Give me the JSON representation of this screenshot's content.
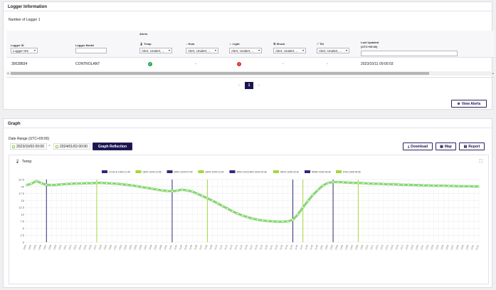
{
  "logger_info": {
    "title": "Logger Information",
    "count_label": "Number of Logger 1",
    "alerts_group_label": "Alerts",
    "columns": {
      "logger_id": "Logger ID",
      "logger_model": "Logger Model",
      "temp": "Temp",
      "hum": "Hum",
      "light": "Light",
      "shock": "Shock",
      "tilt": "Tilt",
      "last_updated": "Last Updated",
      "last_updated_tz": "(UTC+09:00)"
    },
    "filters": {
      "logger_id": "Logger IDs",
      "alert": "Alert, Unalert, ..."
    },
    "row": {
      "logger_id": "30028834",
      "logger_model": "CONTROLANT",
      "hum": "-",
      "shock": "-",
      "tilt": "-",
      "last_updated": "2023/10/11 09:00:03",
      "temp_status_color": "#22a84a",
      "light_status_color": "#d9342b"
    },
    "pagination": {
      "prev": "‹",
      "current": "1",
      "next": "›"
    },
    "view_alerts_label": "View Alerts"
  },
  "graph": {
    "title": "Graph",
    "date_range_label": "Date Range (UTC+09:00)",
    "start_date": "2023/10/03 00:00",
    "end_date": "2024/01/03 00:00",
    "separator": "~",
    "reflect_label": "Graph Reflection",
    "download_label": "Download",
    "map_label": "Map",
    "report_label": "Report",
    "chart_title": "Temp",
    "accent_color": "#1a1550",
    "line_color": "#8fdc7a"
  },
  "chart_data": {
    "type": "line",
    "title": "Temp",
    "ylim": [
      0,
      22.5
    ],
    "yticks": [
      "0",
      "2.5",
      "5",
      "7.5",
      "10",
      "12.5",
      "15",
      "17.5",
      "20",
      "22.5"
    ],
    "grid": true,
    "x": [
      "10/03",
      "10/04",
      "10/05",
      "10/06",
      "10/07",
      "10/08",
      "10/09",
      "10/10",
      "10/11",
      "10/12",
      "10/13",
      "10/14",
      "10/15",
      "10/16",
      "10/17",
      "10/18",
      "10/19",
      "10/20",
      "10/21",
      "10/22",
      "10/23",
      "10/24",
      "10/25",
      "10/26",
      "10/27",
      "10/28",
      "10/29",
      "10/30",
      "10/31",
      "11/01",
      "11/02",
      "11/03",
      "11/04",
      "11/05",
      "11/06",
      "11/07",
      "11/08",
      "11/09",
      "11/10",
      "11/11",
      "11/12",
      "11/13",
      "11/14",
      "11/15",
      "11/16",
      "11/17",
      "11/18",
      "11/19",
      "11/20",
      "11/21",
      "11/22",
      "11/23",
      "11/24",
      "11/25",
      "11/26",
      "11/27",
      "11/28",
      "11/29",
      "11/30",
      "12/01",
      "12/02",
      "12/03",
      "12/04",
      "12/05",
      "12/06",
      "12/07",
      "12/08",
      "12/09",
      "12/10",
      "12/11",
      "12/12",
      "12/13",
      "12/14",
      "12/15",
      "12/16",
      "12/17",
      "12/18",
      "12/19",
      "12/20",
      "12/21",
      "12/22",
      "12/23",
      "12/24",
      "12/25",
      "12/26",
      "12/27",
      "12/28",
      "12/29",
      "12/30",
      "12/31",
      "01/01"
    ],
    "series": [
      {
        "values": [
          20.5,
          21,
          22,
          21.2,
          20.6,
          20.5,
          20.6,
          20.8,
          20.9,
          21,
          21.1,
          21.1,
          21.2,
          21.2,
          21.3,
          21.3,
          21.2,
          21.1,
          21,
          20.8,
          20.6,
          20.4,
          20.1,
          19.8,
          19.5,
          19.2,
          18.9,
          18.6,
          18.4,
          18.3,
          18.5,
          18.9,
          18.6,
          18.2,
          17.4,
          16.6,
          15.8,
          14.9,
          14,
          13,
          12.1,
          11.1,
          10.3,
          9.6,
          9,
          8.5,
          8.1,
          7.8,
          7.6,
          7.5,
          7.4,
          7.4,
          7.5,
          8,
          10,
          12.5,
          14.8,
          17,
          18.8,
          20.4,
          21.3,
          21.6,
          21.6,
          21.5,
          21.4,
          21.3,
          21.3,
          21.2,
          21.1,
          21,
          21,
          20.9,
          20.8,
          20.8,
          20.7,
          20.6,
          20.6,
          20.5,
          20.5,
          20.4,
          20.4,
          20.3,
          20.3,
          20.3,
          20.2,
          20.2,
          20.1,
          20.1,
          20.1,
          20,
          20
        ]
      }
    ],
    "events": [
      {
        "label": "CCUF-E 10/03 11:46",
        "x_index": 4,
        "color": "#2e2a78"
      },
      {
        "label": "DEP1 10/04 21:56",
        "x_index": 14,
        "color": "#a6d63c"
      },
      {
        "label": "ARV1 10/04 07:50",
        "x_index": 29,
        "color": "#2e2a78"
      },
      {
        "label": "DEP2 10/04 11:49",
        "x_index": 36,
        "color": "#a6d63c"
      },
      {
        "label": "ARV2 10/23 ARV 10/04 20:28",
        "x_index": 53,
        "color": "#2e2a78"
      },
      {
        "label": "ARV2 10/05 20:25",
        "x_index": 55,
        "color": "#a6d63c"
      },
      {
        "label": "RMAV 10/06 09:46",
        "x_index": 61,
        "color": "#2e2a78"
      },
      {
        "label": "POD 10/06 06:56",
        "x_index": 66,
        "color": "#a6d63c"
      }
    ]
  }
}
